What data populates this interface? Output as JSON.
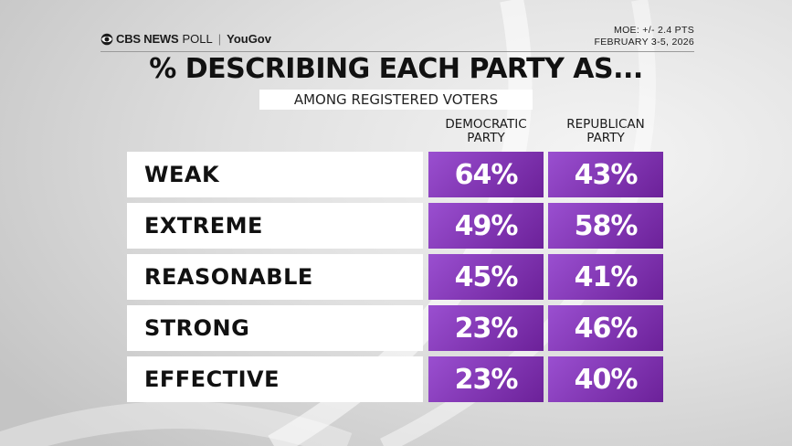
{
  "header": {
    "brand_cbs": "CBS NEWS",
    "brand_poll": "POLL",
    "brand_partner": "YouGov",
    "moe": "MOE: +/- 2.4 PTS",
    "dates": "FEBRUARY 3-5, 2026"
  },
  "colors": {
    "cell_purple_light": "#9a4fd0",
    "cell_purple_dark": "#6c2199",
    "background": "#d9d9d9",
    "label_box": "#ffffff"
  },
  "chart_data": {
    "type": "table",
    "title": "% DESCRIBING EACH PARTY AS...",
    "subtitle": "AMONG REGISTERED VOTERS",
    "columns": [
      {
        "line1": "DEMOCRATIC",
        "line2": "PARTY"
      },
      {
        "line1": "REPUBLICAN",
        "line2": "PARTY"
      }
    ],
    "rows": [
      {
        "label": "WEAK",
        "values": [
          64,
          43
        ],
        "display": [
          "64%",
          "43%"
        ]
      },
      {
        "label": "EXTREME",
        "values": [
          49,
          58
        ],
        "display": [
          "49%",
          "58%"
        ]
      },
      {
        "label": "REASONABLE",
        "values": [
          45,
          41
        ],
        "display": [
          "45%",
          "41%"
        ]
      },
      {
        "label": "STRONG",
        "values": [
          23,
          46
        ],
        "display": [
          "23%",
          "46%"
        ]
      },
      {
        "label": "EFFECTIVE",
        "values": [
          23,
          40
        ],
        "display": [
          "23%",
          "40%"
        ]
      }
    ]
  }
}
